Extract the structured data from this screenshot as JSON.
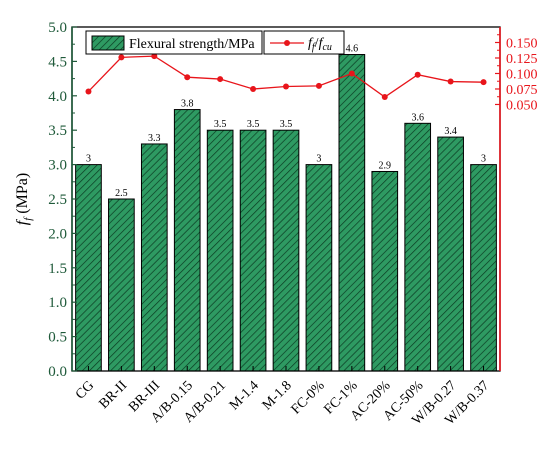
{
  "chart_data": {
    "type": "bar",
    "categories": [
      "CG",
      "BR-II",
      "BR-III",
      "A/B-0.15",
      "A/B-0.21",
      "M-1.4",
      "M-1.8",
      "FC-0%",
      "FC-1%",
      "AC-20%",
      "AC-50%",
      "W/B-0.27",
      "W/B-0.37"
    ],
    "series": [
      {
        "name": "Flexural strength/MPa",
        "axis": "left",
        "kind": "bar",
        "values": [
          3,
          2.5,
          3.3,
          3.8,
          3.5,
          3.5,
          3.5,
          3,
          4.6,
          2.9,
          3.6,
          3.4,
          3
        ],
        "value_labels": [
          "3",
          "2.5",
          "3.3",
          "3.8",
          "3.5",
          "3.5",
          "3.5",
          "3",
          "4.6",
          "2.9",
          "3.6",
          "3.4",
          "3"
        ]
      },
      {
        "name_main": "f",
        "name_sub1": "f",
        "name_sep": "/",
        "name_main2": "f",
        "name_sub2": "cu",
        "axis": "right",
        "kind": "line",
        "values": [
          0.071,
          0.126,
          0.128,
          0.094,
          0.091,
          0.075,
          0.079,
          0.08,
          0.1,
          0.062,
          0.098,
          0.087,
          0.086
        ]
      }
    ],
    "ylabel_main": "f",
    "ylabel_sub": "f",
    "ylabel_unit": " (MPa)",
    "ylim": [
      0,
      5.0
    ],
    "yticks": [
      "0.0",
      "0.5",
      "1.0",
      "1.5",
      "2.0",
      "2.5",
      "3.0",
      "3.5",
      "4.0",
      "4.5",
      "5.0"
    ],
    "y2lim": [
      -0.38,
      0.175
    ],
    "y2ticks": [
      "0.050",
      "0.075",
      "0.100",
      "0.125",
      "0.150"
    ],
    "legend_position": "top",
    "grid": false
  },
  "colors": {
    "bar_fill": "#2e9a62",
    "bar_hatch": "#0b3b22",
    "bar_edge": "#000000",
    "left_axis": "#1f5a3a",
    "right_axis": "#e8151b",
    "line": "#e8151b"
  }
}
